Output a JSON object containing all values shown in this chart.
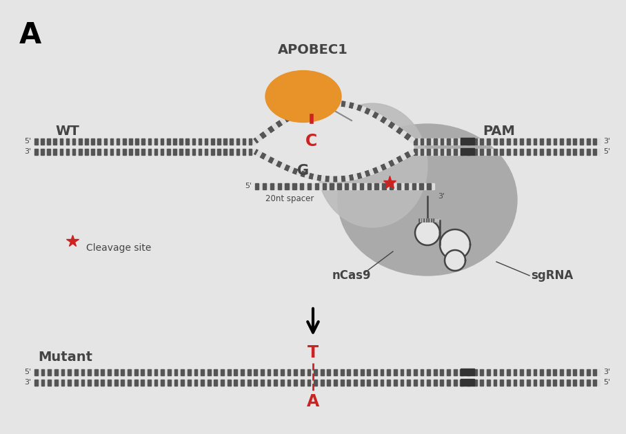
{
  "bg_color": "#e5e5e5",
  "title_A": "A",
  "apobec1_label": "APOBEC1",
  "wt_label": "WT",
  "pam_label": "PAM",
  "c_label": "C",
  "g_label": "G",
  "spacer_label": "20nt spacer",
  "ncas9_label": "nCas9",
  "sgrna_label": "sgRNA",
  "cleavage_label": "Cleavage site",
  "mutant_label": "Mutant",
  "t_label": "T",
  "a_label": "A",
  "gray_dark": "#444444",
  "gray_mid": "#777777",
  "gray_cas9": "#aaaaaa",
  "gray_cas9_2": "#999999",
  "orange_color": "#E8922A",
  "red_color": "#cc2222",
  "black": "#000000",
  "dna_dark": "#555555",
  "dna_light": "#dddddd",
  "pam_dark": "#333333"
}
